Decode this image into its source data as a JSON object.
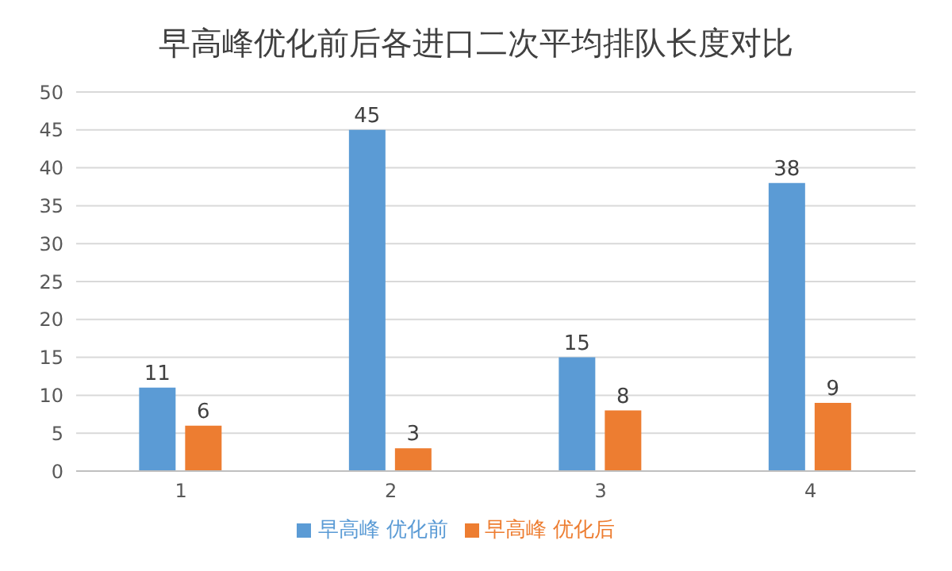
{
  "chart_data": {
    "type": "bar",
    "title": "早高峰优化前后各进口二次平均排队长度对比",
    "categories": [
      "1",
      "2",
      "3",
      "4"
    ],
    "series": [
      {
        "name": "早高峰 优化前",
        "color": "#5b9bd5",
        "values": [
          11,
          45,
          15,
          38
        ]
      },
      {
        "name": "早高峰 优化后",
        "color": "#ed7d31",
        "values": [
          6,
          3,
          8,
          9
        ]
      }
    ],
    "ylim": [
      0,
      50
    ],
    "yticks": [
      0,
      5,
      10,
      15,
      20,
      25,
      30,
      35,
      40,
      45,
      50
    ],
    "grid": "y",
    "legend": "bottom",
    "data_labels": true
  }
}
